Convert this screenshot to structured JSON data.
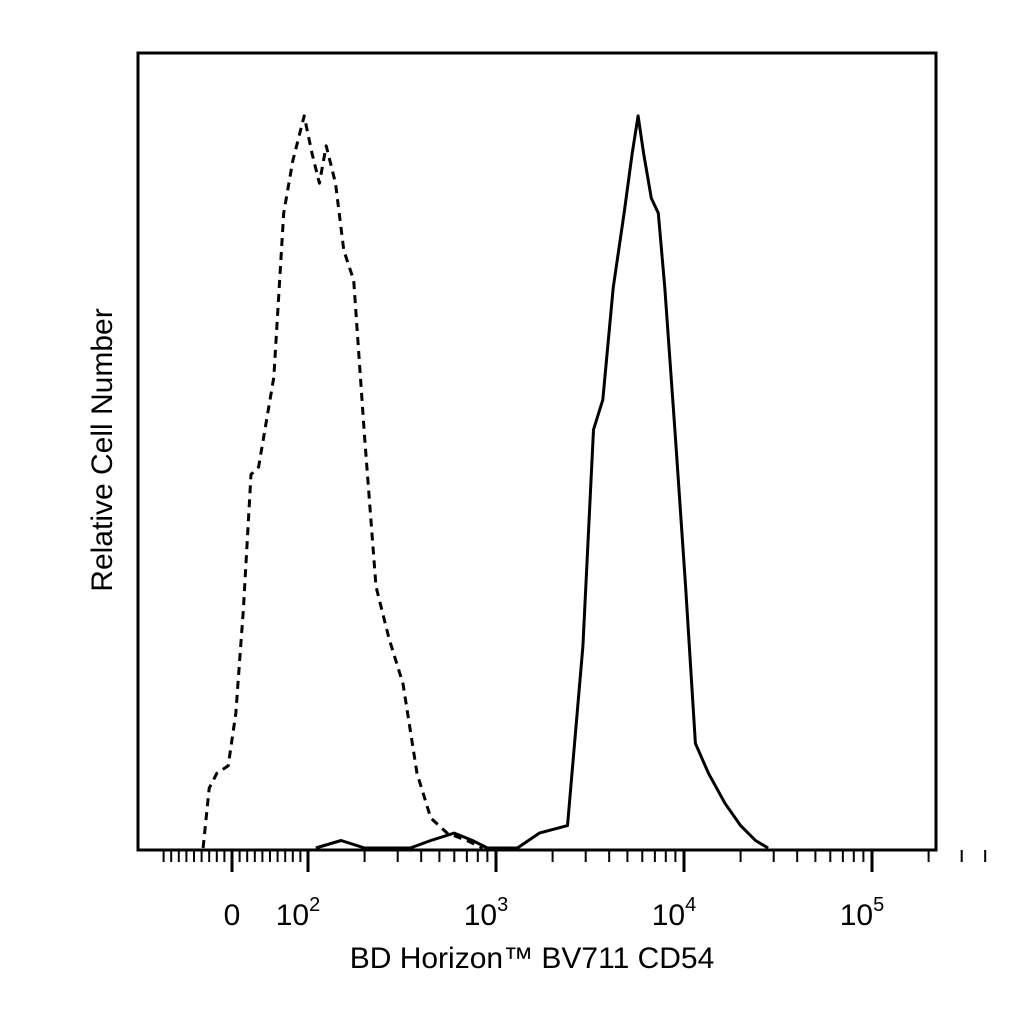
{
  "chart_data": {
    "type": "line",
    "title": "",
    "xlabel": "BD Horizon™ BV711 CD54",
    "ylabel": "Relative Cell Number",
    "xscale": "biexponential",
    "xlim": [
      -60,
      100000
    ],
    "ylim": [
      0,
      1
    ],
    "grid": false,
    "legend": "none",
    "x_tick_labels": [
      {
        "value": 0,
        "base": "0",
        "exp": ""
      },
      {
        "value": 100,
        "base": "10",
        "exp": "2"
      },
      {
        "value": 1000,
        "base": "10",
        "exp": "3"
      },
      {
        "value": 10000,
        "base": "10",
        "exp": "4"
      },
      {
        "value": 100000,
        "base": "10",
        "exp": "5"
      }
    ],
    "series": [
      {
        "style": "dashed",
        "color": "#000000",
        "points": [
          [
            -38,
            0.0
          ],
          [
            -30,
            0.08
          ],
          [
            -20,
            0.1
          ],
          [
            -5,
            0.11
          ],
          [
            5,
            0.18
          ],
          [
            15,
            0.32
          ],
          [
            25,
            0.5
          ],
          [
            35,
            0.51
          ],
          [
            45,
            0.57
          ],
          [
            55,
            0.63
          ],
          [
            68,
            0.85
          ],
          [
            80,
            0.92
          ],
          [
            95,
            0.98
          ],
          [
            105,
            0.93
          ],
          [
            115,
            0.89
          ],
          [
            125,
            0.94
          ],
          [
            140,
            0.89
          ],
          [
            155,
            0.8
          ],
          [
            175,
            0.76
          ],
          [
            200,
            0.55
          ],
          [
            230,
            0.35
          ],
          [
            270,
            0.28
          ],
          [
            320,
            0.22
          ],
          [
            380,
            0.1
          ],
          [
            450,
            0.04
          ],
          [
            550,
            0.02
          ],
          [
            700,
            0.01
          ],
          [
            850,
            0.0
          ]
        ]
      },
      {
        "style": "solid",
        "color": "#000000",
        "points": [
          [
            110,
            0.0
          ],
          [
            150,
            0.01
          ],
          [
            200,
            0.0
          ],
          [
            350,
            0.0
          ],
          [
            450,
            0.01
          ],
          [
            600,
            0.02
          ],
          [
            750,
            0.01
          ],
          [
            900,
            0.0
          ],
          [
            1300,
            0.0
          ],
          [
            1700,
            0.02
          ],
          [
            2400,
            0.03
          ],
          [
            2900,
            0.27
          ],
          [
            3300,
            0.56
          ],
          [
            3700,
            0.6
          ],
          [
            4200,
            0.75
          ],
          [
            4800,
            0.85
          ],
          [
            5300,
            0.93
          ],
          [
            5700,
            0.98
          ],
          [
            6100,
            0.93
          ],
          [
            6700,
            0.87
          ],
          [
            7300,
            0.85
          ],
          [
            7900,
            0.75
          ],
          [
            9000,
            0.55
          ],
          [
            10200,
            0.35
          ],
          [
            11500,
            0.14
          ],
          [
            13500,
            0.1
          ],
          [
            16500,
            0.06
          ],
          [
            20000,
            0.03
          ],
          [
            24000,
            0.01
          ],
          [
            28000,
            0.0
          ]
        ]
      }
    ]
  }
}
